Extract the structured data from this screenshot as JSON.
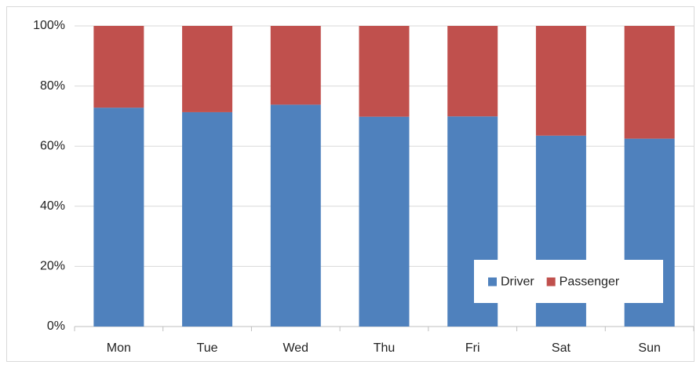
{
  "chart_data": {
    "type": "stacked_bar",
    "categories": [
      "Mon",
      "Tue",
      "Wed",
      "Thu",
      "Fri",
      "Sat",
      "Sun"
    ],
    "series": [
      {
        "name": "Driver",
        "color": "#4f81bd",
        "values": [
          72.8,
          71.3,
          73.8,
          69.8,
          69.9,
          63.5,
          62.5
        ]
      },
      {
        "name": "Passenger",
        "color": "#c0504d",
        "values": [
          27.2,
          28.7,
          26.2,
          30.2,
          30.1,
          36.5,
          37.5
        ]
      }
    ],
    "ylim": [
      0,
      100
    ],
    "yticks": [
      {
        "value": 0,
        "label": "0%"
      },
      {
        "value": 20,
        "label": "20%"
      },
      {
        "value": 40,
        "label": "40%"
      },
      {
        "value": 60,
        "label": "60%"
      },
      {
        "value": 80,
        "label": "80%"
      },
      {
        "value": 100,
        "label": "100%"
      }
    ],
    "grid": true,
    "legend": "lower right"
  }
}
